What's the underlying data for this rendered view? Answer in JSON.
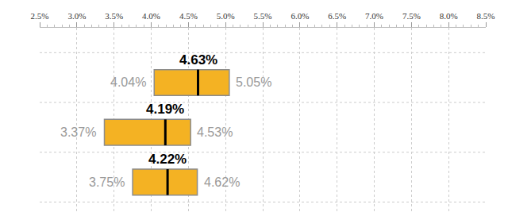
{
  "chart_data": {
    "type": "range",
    "orientation": "horizontal",
    "categories": [
      null,
      null,
      null
    ],
    "low": [
      4.04,
      3.37,
      3.75
    ],
    "low_labels": [
      "4.04%",
      "3.37%",
      "3.75%"
    ],
    "values": [
      4.63,
      4.19,
      4.22
    ],
    "value_labels": [
      "4.63%",
      "4.19%",
      "4.22%"
    ],
    "high": [
      5.05,
      4.53,
      4.62
    ],
    "high_labels": [
      "5.05%",
      "4.53%",
      "4.62%"
    ],
    "color": "#f4b223",
    "xlim": [
      2.5,
      8.5
    ],
    "xticks": [
      {
        "value": 2.5,
        "label": "2.5%"
      },
      {
        "value": 3.0,
        "label": "3.0%"
      },
      {
        "value": 3.5,
        "label": "3.5%"
      },
      {
        "value": 4.0,
        "label": "4.0%"
      },
      {
        "value": 4.5,
        "label": "4.5%"
      },
      {
        "value": 5.0,
        "label": "5.0%"
      },
      {
        "value": 5.5,
        "label": "5.5%"
      },
      {
        "value": 6.0,
        "label": "6.0%"
      },
      {
        "value": 6.5,
        "label": "6.5%"
      },
      {
        "value": 7.0,
        "label": "7.0%"
      },
      {
        "value": 7.5,
        "label": "7.5%"
      },
      {
        "value": 8.0,
        "label": "8.0%"
      },
      {
        "value": 8.5,
        "label": "8.5%"
      }
    ],
    "grid": true,
    "data_labels": true,
    "tick_labels": "x"
  }
}
